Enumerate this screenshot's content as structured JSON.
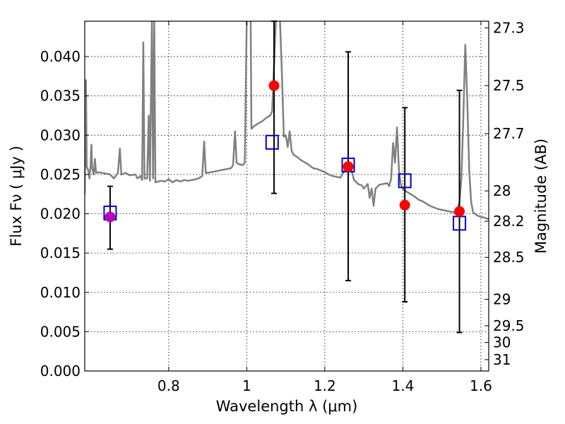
{
  "chart_data": {
    "type": "scatter",
    "xlabel": "Wavelength  λ (μm)",
    "ylabel": "Flux  Fν  ( μJy )",
    "y2label": "Magnitude (AB)",
    "xlim": [
      0.585,
      1.62
    ],
    "ylim": [
      0.0,
      0.0445
    ],
    "grid": true,
    "x_ticks": [
      0.8,
      1.0,
      1.2,
      1.4,
      1.6
    ],
    "x_tick_labels": [
      "0.8",
      "1",
      "1.2",
      "1.4",
      "1.6"
    ],
    "y_ticks": [
      0.0,
      0.005,
      0.01,
      0.015,
      0.02,
      0.025,
      0.03,
      0.035,
      0.04
    ],
    "y_tick_labels": [
      "0.000",
      "0.005",
      "0.010",
      "0.015",
      "0.020",
      "0.025",
      "0.030",
      "0.035",
      "0.040"
    ],
    "mag_ticks": [
      {
        "label": "27.3",
        "mag": 27.3
      },
      {
        "label": "27.5",
        "mag": 27.5
      },
      {
        "label": "27.7",
        "mag": 27.7
      },
      {
        "label": "28",
        "mag": 28.0
      },
      {
        "label": "28.2",
        "mag": 28.2
      },
      {
        "label": "28.5",
        "mag": 28.5
      },
      {
        "label": "29",
        "mag": 29.0
      },
      {
        "label": "29.5",
        "mag": 29.5
      },
      {
        "label": "30",
        "mag": 30.0
      },
      {
        "label": "31",
        "mag": 31.0
      }
    ],
    "colors": {
      "model": "#808080",
      "observed": "#ff0000",
      "observed_optical": "#bb00bb",
      "model_box": "#0000cc",
      "errorbar": "#000000"
    },
    "model_spectrum": [
      [
        0.585,
        0.0225
      ],
      [
        0.588,
        0.037
      ],
      [
        0.59,
        0.026
      ],
      [
        0.594,
        0.0255
      ],
      [
        0.597,
        0.0245
      ],
      [
        0.6,
        0.0262
      ],
      [
        0.602,
        0.0288
      ],
      [
        0.604,
        0.0258
      ],
      [
        0.608,
        0.025
      ],
      [
        0.611,
        0.027
      ],
      [
        0.614,
        0.0252
      ],
      [
        0.62,
        0.0253
      ],
      [
        0.63,
        0.0252
      ],
      [
        0.64,
        0.0251
      ],
      [
        0.65,
        0.025
      ],
      [
        0.66,
        0.0245
      ],
      [
        0.67,
        0.0252
      ],
      [
        0.675,
        0.0283
      ],
      [
        0.679,
        0.025
      ],
      [
        0.69,
        0.0252
      ],
      [
        0.7,
        0.0249
      ],
      [
        0.715,
        0.025
      ],
      [
        0.72,
        0.0245
      ],
      [
        0.728,
        0.0248
      ],
      [
        0.732,
        0.0243
      ],
      [
        0.735,
        0.0418
      ],
      [
        0.738,
        0.0245
      ],
      [
        0.745,
        0.0245
      ],
      [
        0.749,
        0.0325
      ],
      [
        0.752,
        0.0242
      ],
      [
        0.757,
        0.045
      ],
      [
        0.76,
        0.0245
      ],
      [
        0.763,
        0.045
      ],
      [
        0.766,
        0.024
      ],
      [
        0.78,
        0.0242
      ],
      [
        0.79,
        0.0241
      ],
      [
        0.8,
        0.0244
      ],
      [
        0.81,
        0.024
      ],
      [
        0.82,
        0.0243
      ],
      [
        0.83,
        0.0241
      ],
      [
        0.84,
        0.0243
      ],
      [
        0.85,
        0.0242
      ],
      [
        0.86,
        0.0243
      ],
      [
        0.87,
        0.0244
      ],
      [
        0.88,
        0.0246
      ],
      [
        0.886,
        0.0248
      ],
      [
        0.891,
        0.0292
      ],
      [
        0.895,
        0.0252
      ],
      [
        0.91,
        0.0253
      ],
      [
        0.92,
        0.0254
      ],
      [
        0.93,
        0.0255
      ],
      [
        0.94,
        0.0256
      ],
      [
        0.95,
        0.0257
      ],
      [
        0.96,
        0.0258
      ],
      [
        0.965,
        0.0262
      ],
      [
        0.97,
        0.0305
      ],
      [
        0.974,
        0.0265
      ],
      [
        0.98,
        0.0263
      ],
      [
        0.99,
        0.0262
      ],
      [
        0.995,
        0.0265
      ],
      [
        1.0,
        0.045
      ],
      [
        1.01,
        0.045
      ],
      [
        1.012,
        0.0308
      ],
      [
        1.02,
        0.0312
      ],
      [
        1.03,
        0.0315
      ],
      [
        1.04,
        0.0318
      ],
      [
        1.05,
        0.0322
      ],
      [
        1.06,
        0.0325
      ],
      [
        1.065,
        0.033
      ],
      [
        1.075,
        0.045
      ],
      [
        1.085,
        0.045
      ],
      [
        1.09,
        0.038
      ],
      [
        1.095,
        0.0298
      ],
      [
        1.1,
        0.03
      ],
      [
        1.105,
        0.0285
      ],
      [
        1.11,
        0.0305
      ],
      [
        1.115,
        0.028
      ],
      [
        1.12,
        0.0275
      ],
      [
        1.13,
        0.0272
      ],
      [
        1.14,
        0.0268
      ],
      [
        1.15,
        0.0265
      ],
      [
        1.16,
        0.0262
      ],
      [
        1.17,
        0.0258
      ],
      [
        1.18,
        0.0257
      ],
      [
        1.19,
        0.0255
      ],
      [
        1.2,
        0.0253
      ],
      [
        1.21,
        0.025
      ],
      [
        1.22,
        0.0248
      ],
      [
        1.23,
        0.0247
      ],
      [
        1.24,
        0.0246
      ],
      [
        1.25,
        0.0255
      ],
      [
        1.255,
        0.0262
      ],
      [
        1.265,
        0.0262
      ],
      [
        1.275,
        0.0243
      ],
      [
        1.285,
        0.0238
      ],
      [
        1.295,
        0.0236
      ],
      [
        1.3,
        0.0232
      ],
      [
        1.31,
        0.0238
      ],
      [
        1.315,
        0.022
      ],
      [
        1.32,
        0.0232
      ],
      [
        1.325,
        0.021
      ],
      [
        1.33,
        0.0232
      ],
      [
        1.34,
        0.0237
      ],
      [
        1.35,
        0.0238
      ],
      [
        1.36,
        0.0239
      ],
      [
        1.365,
        0.0235
      ],
      [
        1.37,
        0.0245
      ],
      [
        1.375,
        0.029
      ],
      [
        1.38,
        0.0265
      ],
      [
        1.385,
        0.031
      ],
      [
        1.39,
        0.0255
      ],
      [
        1.395,
        0.0237
      ],
      [
        1.4,
        0.0232
      ],
      [
        1.41,
        0.0228
      ],
      [
        1.42,
        0.0225
      ],
      [
        1.43,
        0.0222
      ],
      [
        1.44,
        0.0218
      ],
      [
        1.45,
        0.0216
      ],
      [
        1.46,
        0.0213
      ],
      [
        1.47,
        0.021
      ],
      [
        1.48,
        0.0208
      ],
      [
        1.49,
        0.0206
      ],
      [
        1.5,
        0.0205
      ],
      [
        1.51,
        0.0204
      ],
      [
        1.52,
        0.0203
      ],
      [
        1.525,
        0.0202
      ],
      [
        1.53,
        0.0202
      ],
      [
        1.535,
        0.0203
      ],
      [
        1.54,
        0.0206
      ],
      [
        1.545,
        0.0215
      ],
      [
        1.55,
        0.0245
      ],
      [
        1.555,
        0.0325
      ],
      [
        1.56,
        0.0415
      ],
      [
        1.565,
        0.0345
      ],
      [
        1.57,
        0.0255
      ],
      [
        1.575,
        0.0215
      ],
      [
        1.58,
        0.0202
      ],
      [
        1.59,
        0.0198
      ],
      [
        1.6,
        0.0196
      ],
      [
        1.61,
        0.0195
      ],
      [
        1.62,
        0.0193
      ]
    ],
    "observed_points": [
      {
        "x": 0.65,
        "y": 0.0196,
        "yerr_low": 0.0155,
        "yerr_high": 0.0235,
        "optical": true
      },
      {
        "x": 1.07,
        "y": 0.0363,
        "yerr_low": 0.0226,
        "yerr_high": 0.0445,
        "optical": false
      },
      {
        "x": 1.26,
        "y": 0.026,
        "yerr_low": 0.0115,
        "yerr_high": 0.0406,
        "optical": false
      },
      {
        "x": 1.405,
        "y": 0.0211,
        "yerr_low": 0.0088,
        "yerr_high": 0.0335,
        "optical": false
      },
      {
        "x": 1.545,
        "y": 0.0203,
        "yerr_low": 0.0049,
        "yerr_high": 0.0357,
        "optical": false
      }
    ],
    "model_points": [
      {
        "x": 0.65,
        "y": 0.0201
      },
      {
        "x": 1.065,
        "y": 0.0291
      },
      {
        "x": 1.26,
        "y": 0.0262
      },
      {
        "x": 1.405,
        "y": 0.0242
      },
      {
        "x": 1.545,
        "y": 0.0188
      }
    ]
  }
}
